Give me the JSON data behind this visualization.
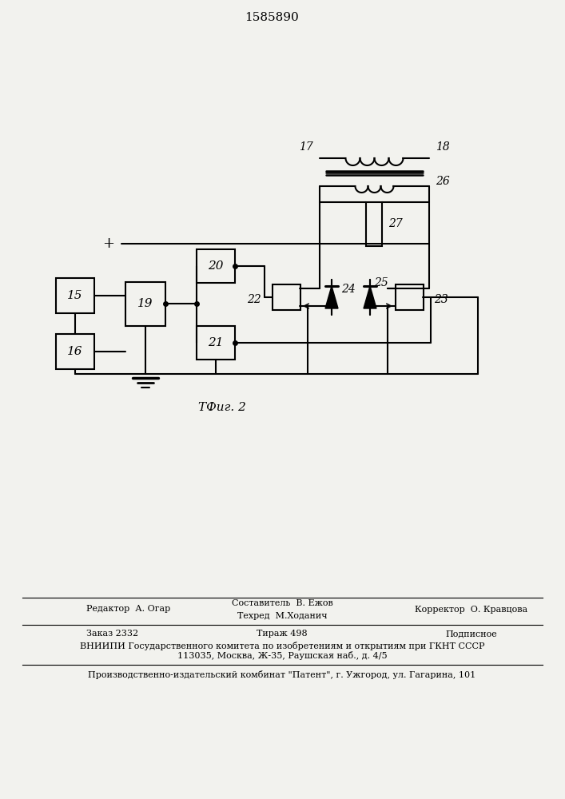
{
  "title": "1585890",
  "fig2_label": "ΤФиг. 2",
  "background": "#f2f2ee",
  "line_color": "#000000",
  "footer_text": {
    "editor": "Редактор  А. Огар",
    "composer": "Составитель  В. Ежов",
    "techred": "Техред  М.Ходанич",
    "corrector": "Корректор  О. Кравцова",
    "zakaz": "Заказ 2332",
    "tirazh": "Тираж 498",
    "podpisnoe": "Подписное",
    "vniip1": "ВНИИПИ Государственного комитета по изобретениям и открытиям при ГКНТ СССР",
    "vniip2": "113035, Москва, Ж-35, Раушская наб., д. 4/5",
    "patent": "Производственно-издательский комбинат \"Патент\", г. Ужгород, ул. Гагарина, 101"
  }
}
